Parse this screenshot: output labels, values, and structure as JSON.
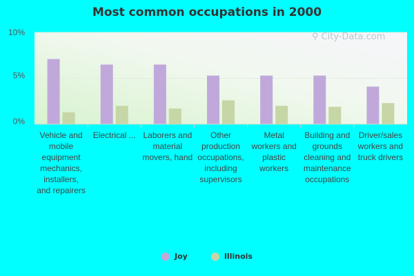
{
  "chart_data": {
    "type": "bar",
    "title": "Most common occupations in 2000",
    "xlabel": "",
    "ylabel": "",
    "ylim": [
      0,
      10
    ],
    "yticks": [
      "0%",
      "5%",
      "10%"
    ],
    "categories": [
      "Vehicle and mobile equipment mechanics, installers, and repairers",
      "Electrical ...",
      "Laborers and material movers, hand",
      "Other production occupations, including supervisors",
      "Metal workers and plastic workers",
      "Building and grounds cleaning and maintenance occupations",
      "Driver/sales workers and truck drivers"
    ],
    "series": [
      {
        "name": "Joy",
        "color": "#c0a9da",
        "values": [
          7.1,
          6.5,
          6.5,
          5.3,
          5.3,
          5.3,
          4.1
        ]
      },
      {
        "name": "Illinois",
        "color": "#c6d6a6",
        "values": [
          1.3,
          2.0,
          1.7,
          2.6,
          2.0,
          1.9,
          2.3
        ]
      }
    ],
    "grid": true,
    "legend": "bottom"
  },
  "watermark": {
    "text": "City-Data.com"
  }
}
